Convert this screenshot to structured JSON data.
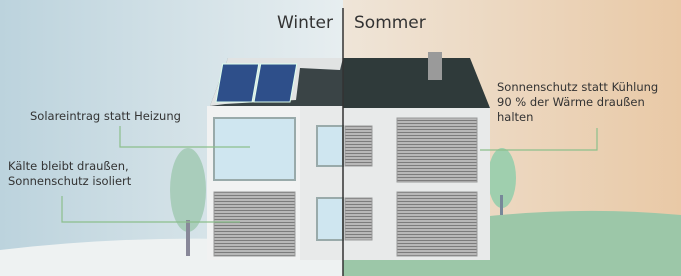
{
  "header": {
    "left": "Winter",
    "right": "Sommer"
  },
  "annotations": [
    {
      "lines": [
        "Solareintrag statt Heizung"
      ]
    },
    {
      "lines": [
        "Kälte bleibt draußen,",
        "Sonnenschutz isoliert"
      ]
    },
    {
      "lines": [
        "Sonnenschutz statt Kühlung",
        "90 % der Wärme draußen",
        "halten"
      ]
    }
  ]
}
